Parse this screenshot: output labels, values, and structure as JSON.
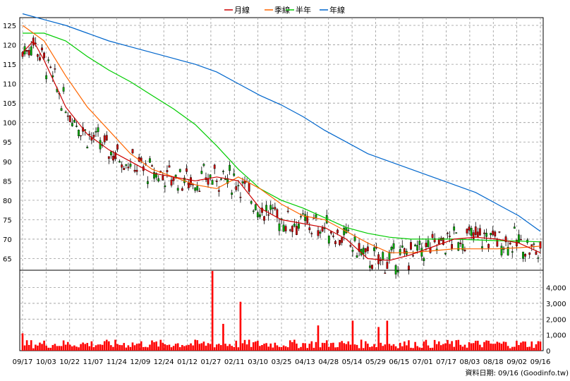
{
  "chart_data": {
    "type": "line",
    "note_candles": "Daily OHLC candlesticks with moving averages (price panel) and volume bars (volume panel).",
    "x_tick_labels": [
      "09/17",
      "10/03",
      "10/22",
      "11/07",
      "11/24",
      "12/09",
      "12/24",
      "01/12",
      "01/27",
      "02/11",
      "03/10",
      "03/25",
      "04/13",
      "04/28",
      "05/14",
      "05/29",
      "06/15",
      "07/01",
      "07/17",
      "08/03",
      "08/18",
      "09/02",
      "09/16"
    ],
    "price_panel": {
      "y_ticks": [
        65,
        70,
        75,
        80,
        85,
        90,
        95,
        100,
        105,
        110,
        115,
        120,
        125
      ],
      "ylim": [
        62,
        127
      ]
    },
    "volume_panel": {
      "y_ticks": [
        0,
        1000,
        2000,
        3000,
        4000
      ],
      "y_tick_labels": [
        "0",
        "1,000",
        "2,000",
        "3,000",
        "4,000"
      ],
      "ylim": [
        0,
        5100
      ],
      "bar_color": "#ff0000"
    },
    "legend": [
      {
        "name": "月線",
        "color": "#cc0000"
      },
      {
        "name": "季線",
        "color": "#ff6600"
      },
      {
        "name": "半年",
        "color": "#00cc00"
      },
      {
        "name": "年線",
        "color": "#0066cc"
      }
    ],
    "series": [
      {
        "name": "年線",
        "x": [
          0,
          10,
          20,
          30,
          40,
          50,
          60,
          70,
          80,
          90,
          100,
          110,
          120,
          130,
          140,
          150,
          160,
          170,
          180,
          190,
          200,
          210,
          220,
          230,
          240
        ],
        "values": [
          128,
          126.5,
          125,
          123,
          121,
          119.5,
          118,
          116.5,
          115,
          113,
          110,
          107,
          104.5,
          101.5,
          98,
          95,
          92,
          90,
          88,
          86,
          84,
          82,
          79,
          76,
          72
        ]
      },
      {
        "name": "半年",
        "x": [
          0,
          10,
          20,
          30,
          40,
          50,
          60,
          70,
          80,
          90,
          100,
          110,
          120,
          130,
          140,
          150,
          160,
          170,
          180,
          190,
          200,
          210,
          220,
          230,
          240
        ],
        "values": [
          123,
          123,
          121,
          117,
          113.5,
          110.5,
          107,
          103.5,
          99.5,
          94,
          88,
          83,
          80,
          78,
          75.5,
          73,
          71.5,
          70.5,
          70,
          70,
          70,
          69.8,
          69.6,
          69.5,
          69.3
        ]
      },
      {
        "name": "季線",
        "x": [
          0,
          5,
          10,
          20,
          30,
          40,
          50,
          60,
          70,
          80,
          90,
          100,
          110,
          120,
          130,
          140,
          150,
          160,
          170,
          180,
          190,
          200,
          210,
          220,
          230,
          240
        ],
        "values": [
          125,
          123,
          121,
          112,
          104,
          98,
          92,
          88,
          86,
          84,
          83,
          86,
          83,
          79,
          76,
          75,
          72,
          69,
          66.5,
          66.5,
          67,
          67.5,
          67.5,
          67.5,
          67.8,
          68.2
        ]
      },
      {
        "name": "月線",
        "x": [
          0,
          5,
          10,
          15,
          20,
          30,
          40,
          50,
          60,
          70,
          80,
          90,
          100,
          110,
          120,
          130,
          140,
          150,
          160,
          170,
          180,
          190,
          200,
          210,
          220,
          230,
          240
        ],
        "values": [
          118,
          121,
          116,
          110,
          104,
          97,
          93,
          90,
          87,
          86,
          85,
          86,
          85,
          78,
          75,
          74,
          73,
          70,
          65,
          64.5,
          66,
          68,
          70,
          70.5,
          70,
          69,
          66.5
        ]
      }
    ],
    "volume_notable_values": [
      {
        "x": 0,
        "value": 1100
      },
      {
        "x": 88,
        "value": 5050
      },
      {
        "x": 93,
        "value": 1700
      },
      {
        "x": 101,
        "value": 3100
      },
      {
        "x": 137,
        "value": 1600
      },
      {
        "x": 153,
        "value": 1900
      },
      {
        "x": 165,
        "value": 1500
      },
      {
        "x": 169,
        "value": 1900
      }
    ]
  },
  "footer": {
    "source_note": "資料日期: 09/16  (Goodinfo.tw)"
  },
  "colors": {
    "up_candle": "#00aa00",
    "down_candle": "#cc0000",
    "grid": "#999999"
  }
}
